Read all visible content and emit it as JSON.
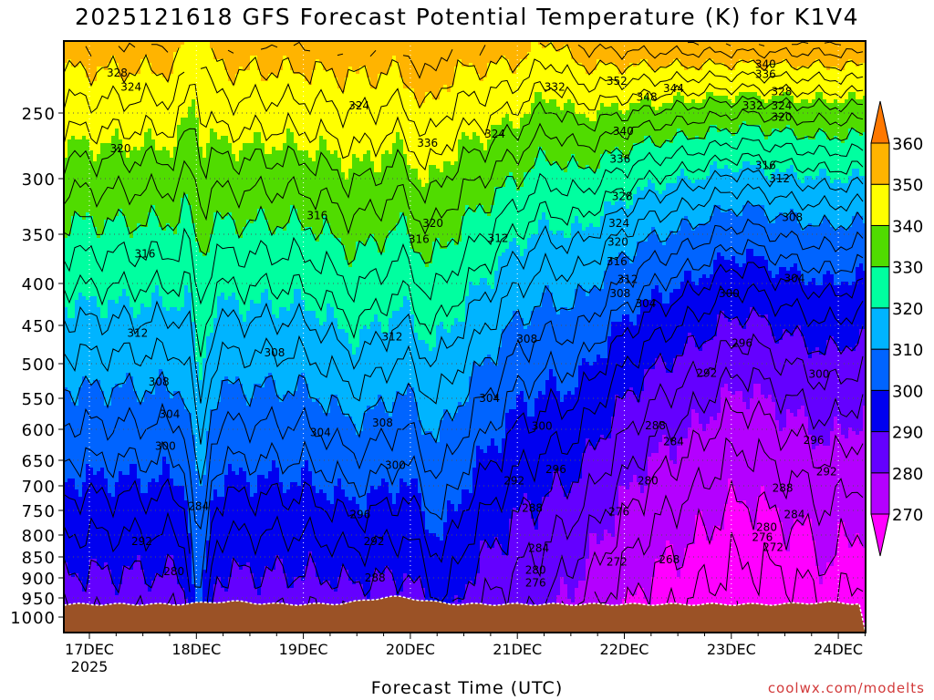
{
  "chart_data": {
    "type": "heatmap",
    "title": "2025121618 GFS Forecast Potential Temperature (K) for K1V4",
    "xlabel": "Forecast Time (UTC)",
    "ylabel": "",
    "credit": "coolwx.com/modelts",
    "x_ticks": [
      "17DEC",
      "18DEC",
      "19DEC",
      "20DEC",
      "21DEC",
      "22DEC",
      "23DEC",
      "24DEC"
    ],
    "x_year_label": "2025",
    "y_ticks": [
      250,
      300,
      350,
      400,
      450,
      500,
      550,
      600,
      650,
      700,
      750,
      800,
      850,
      900,
      950,
      1000
    ],
    "ylim": [
      200,
      1000
    ],
    "colorbar": {
      "levels": [
        270,
        280,
        290,
        300,
        310,
        320,
        330,
        340,
        350,
        360
      ],
      "colors": [
        "#ff00ff",
        "#b400ff",
        "#6400ff",
        "#0000f0",
        "#0064ff",
        "#00b4ff",
        "#00ffa0",
        "#50dc00",
        "#ffff00",
        "#ffb400",
        "#ff7800"
      ]
    },
    "contour_labels": [
      {
        "label": "328",
        "day": 17.26,
        "p": 222
      },
      {
        "label": "324",
        "day": 17.39,
        "p": 232
      },
      {
        "label": "320",
        "day": 17.29,
        "p": 277
      },
      {
        "label": "316",
        "day": 17.52,
        "p": 370
      },
      {
        "label": "312",
        "day": 17.45,
        "p": 460
      },
      {
        "label": "308",
        "day": 17.65,
        "p": 526
      },
      {
        "label": "304",
        "day": 17.75,
        "p": 576
      },
      {
        "label": "300",
        "day": 17.71,
        "p": 627
      },
      {
        "label": "292",
        "day": 17.49,
        "p": 815
      },
      {
        "label": "284",
        "day": 18.02,
        "p": 742
      },
      {
        "label": "280",
        "day": 17.79,
        "p": 885
      },
      {
        "label": "324",
        "day": 19.52,
        "p": 245
      },
      {
        "label": "316",
        "day": 19.13,
        "p": 333
      },
      {
        "label": "308",
        "day": 18.73,
        "p": 486
      },
      {
        "label": "304",
        "day": 19.16,
        "p": 605
      },
      {
        "label": "296",
        "day": 19.53,
        "p": 758
      },
      {
        "label": "292",
        "day": 19.66,
        "p": 815
      },
      {
        "label": "288",
        "day": 19.67,
        "p": 900
      },
      {
        "label": "336",
        "day": 20.16,
        "p": 273
      },
      {
        "label": "320",
        "day": 20.21,
        "p": 340
      },
      {
        "label": "316",
        "day": 20.08,
        "p": 355
      },
      {
        "label": "312",
        "day": 19.83,
        "p": 465
      },
      {
        "label": "308",
        "day": 19.74,
        "p": 590
      },
      {
        "label": "300",
        "day": 19.86,
        "p": 660
      },
      {
        "label": "324",
        "day": 20.79,
        "p": 266
      },
      {
        "label": "312",
        "day": 20.82,
        "p": 354
      },
      {
        "label": "308",
        "day": 21.09,
        "p": 468
      },
      {
        "label": "304",
        "day": 20.74,
        "p": 550
      },
      {
        "label": "300",
        "day": 21.23,
        "p": 595
      },
      {
        "label": "296",
        "day": 21.36,
        "p": 668
      },
      {
        "label": "292",
        "day": 20.97,
        "p": 690
      },
      {
        "label": "288",
        "day": 21.14,
        "p": 745
      },
      {
        "label": "284",
        "day": 21.2,
        "p": 830
      },
      {
        "label": "280",
        "day": 21.17,
        "p": 882
      },
      {
        "label": "276",
        "day": 21.17,
        "p": 913
      },
      {
        "label": "332",
        "day": 21.35,
        "p": 232
      },
      {
        "label": "352",
        "day": 21.93,
        "p": 228
      },
      {
        "label": "348",
        "day": 22.21,
        "p": 239
      },
      {
        "label": "344",
        "day": 22.46,
        "p": 233
      },
      {
        "label": "340",
        "day": 21.99,
        "p": 264
      },
      {
        "label": "336",
        "day": 21.96,
        "p": 285
      },
      {
        "label": "328",
        "day": 21.98,
        "p": 316
      },
      {
        "label": "324",
        "day": 21.95,
        "p": 340
      },
      {
        "label": "320",
        "day": 21.94,
        "p": 358
      },
      {
        "label": "316",
        "day": 21.93,
        "p": 378
      },
      {
        "label": "312",
        "day": 22.03,
        "p": 396
      },
      {
        "label": "308",
        "day": 21.96,
        "p": 412
      },
      {
        "label": "304",
        "day": 22.2,
        "p": 424
      },
      {
        "label": "300",
        "day": 22.98,
        "p": 412
      },
      {
        "label": "296",
        "day": 23.1,
        "p": 473
      },
      {
        "label": "292",
        "day": 22.77,
        "p": 514
      },
      {
        "label": "288",
        "day": 22.29,
        "p": 594
      },
      {
        "label": "284",
        "day": 22.46,
        "p": 620
      },
      {
        "label": "280",
        "day": 22.22,
        "p": 690
      },
      {
        "label": "276",
        "day": 21.95,
        "p": 753
      },
      {
        "label": "272",
        "day": 21.93,
        "p": 862
      },
      {
        "label": "268",
        "day": 22.42,
        "p": 857
      },
      {
        "label": "340",
        "day": 23.32,
        "p": 216
      },
      {
        "label": "336",
        "day": 23.32,
        "p": 223
      },
      {
        "label": "332",
        "day": 23.2,
        "p": 245
      },
      {
        "label": "328",
        "day": 23.47,
        "p": 235
      },
      {
        "label": "324",
        "day": 23.47,
        "p": 245
      },
      {
        "label": "320",
        "day": 23.47,
        "p": 253
      },
      {
        "label": "316",
        "day": 23.32,
        "p": 290
      },
      {
        "label": "312",
        "day": 23.45,
        "p": 300
      },
      {
        "label": "308",
        "day": 23.57,
        "p": 335
      },
      {
        "label": "304",
        "day": 23.59,
        "p": 395
      },
      {
        "label": "300",
        "day": 23.82,
        "p": 515
      },
      {
        "label": "296",
        "day": 23.77,
        "p": 618
      },
      {
        "label": "292",
        "day": 23.89,
        "p": 672
      },
      {
        "label": "288",
        "day": 23.48,
        "p": 705
      },
      {
        "label": "284",
        "day": 23.59,
        "p": 758
      },
      {
        "label": "280",
        "day": 23.33,
        "p": 784
      },
      {
        "label": "276",
        "day": 23.29,
        "p": 805
      },
      {
        "label": "272",
        "day": 23.39,
        "p": 828
      }
    ]
  }
}
